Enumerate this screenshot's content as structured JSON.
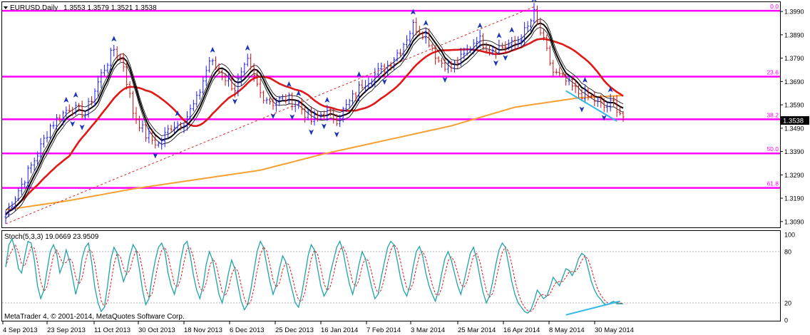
{
  "header": {
    "symbol": "EURUSD,Daily",
    "ohlc": "1.3553 1.3579 1.3521 1.3538",
    "collapse_icon": "triangle-down-icon"
  },
  "colors": {
    "price_line": "#1a1aff",
    "fib_line": "#ff00ff",
    "ma_fast": "#000000",
    "ma_mid": "#e01818",
    "ma_slow": "#f5a030",
    "fractal": "#1c34b8",
    "stoch_main": "#1fa3a8",
    "stoch_signal": "#e01818",
    "divergence": "#33b8e8",
    "trend_line": "#cc2a2a"
  },
  "price_axis": {
    "labels": [
      "1.3990",
      "1.3890",
      "1.3790",
      "1.3690",
      "1.3590",
      "1.3490",
      "1.3390",
      "1.3290",
      "1.3190",
      "1.3090"
    ],
    "current_price": "1.3538"
  },
  "fib_levels": [
    {
      "label": "0.0",
      "price": 1.3993
    },
    {
      "label": "23.6",
      "price": 1.3711
    },
    {
      "label": "38.2",
      "price": 1.3528
    },
    {
      "label": "50.0",
      "price": 1.3382
    },
    {
      "label": "61.8",
      "price": 1.3234
    }
  ],
  "oscillator": {
    "title": "Stoch(5,3,3) 19.0669 23.9509",
    "axis_labels": [
      "100",
      "80",
      "20",
      "0"
    ],
    "levels": [
      80,
      20
    ]
  },
  "footer": {
    "copyright": "MetaTrader 4, © 2001-2014, MetaQuotes Software Corp."
  },
  "time_axis": {
    "labels": [
      "4 Sep 2013",
      "23 Sep 2013",
      "11 Oct 2013",
      "30 Oct 2013",
      "18 Nov 2013",
      "6 Dec 2013",
      "25 Dec 2013",
      "16 Jan 2014",
      "7 Feb 2014",
      "3 Mar 2014",
      "25 Mar 2014",
      "16 Apr 2014",
      "8 May 2014",
      "30 May 2014"
    ]
  },
  "chart_data": {
    "type": "line",
    "instrument": "EURUSD",
    "timeframe": "Daily",
    "ylim": [
      1.3065,
      1.403
    ],
    "price_anchors": [
      [
        0,
        1.312
      ],
      [
        5,
        1.325
      ],
      [
        10,
        1.338
      ],
      [
        14,
        1.35
      ],
      [
        20,
        1.358
      ],
      [
        25,
        1.355
      ],
      [
        30,
        1.372
      ],
      [
        34,
        1.383
      ],
      [
        37,
        1.376
      ],
      [
        40,
        1.356
      ],
      [
        44,
        1.346
      ],
      [
        48,
        1.342
      ],
      [
        52,
        1.35
      ],
      [
        56,
        1.352
      ],
      [
        60,
        1.361
      ],
      [
        64,
        1.378
      ],
      [
        68,
        1.372
      ],
      [
        72,
        1.366
      ],
      [
        76,
        1.377
      ],
      [
        80,
        1.364
      ],
      [
        84,
        1.36
      ],
      [
        88,
        1.362
      ],
      [
        92,
        1.359
      ],
      [
        96,
        1.352
      ],
      [
        100,
        1.356
      ],
      [
        104,
        1.353
      ],
      [
        108,
        1.36
      ],
      [
        112,
        1.368
      ],
      [
        116,
        1.372
      ],
      [
        120,
        1.376
      ],
      [
        124,
        1.383
      ],
      [
        128,
        1.393
      ],
      [
        132,
        1.389
      ],
      [
        136,
        1.378
      ],
      [
        140,
        1.375
      ],
      [
        144,
        1.38
      ],
      [
        148,
        1.388
      ],
      [
        152,
        1.383
      ],
      [
        156,
        1.384
      ],
      [
        160,
        1.385
      ],
      [
        164,
        1.392
      ],
      [
        166,
        1.398
      ],
      [
        168,
        1.39
      ],
      [
        172,
        1.373
      ],
      [
        176,
        1.369
      ],
      [
        180,
        1.364
      ],
      [
        184,
        1.362
      ],
      [
        188,
        1.358
      ],
      [
        191,
        1.36
      ],
      [
        194,
        1.3538
      ]
    ],
    "ma_slow_anchors": [
      [
        0,
        1.314
      ],
      [
        20,
        1.318
      ],
      [
        40,
        1.323
      ],
      [
        60,
        1.327
      ],
      [
        80,
        1.331
      ],
      [
        100,
        1.338
      ],
      [
        120,
        1.344
      ],
      [
        140,
        1.35
      ],
      [
        160,
        1.358
      ],
      [
        180,
        1.362
      ],
      [
        194,
        1.363
      ]
    ],
    "stoch_main": [
      62,
      88,
      95,
      82,
      60,
      55,
      75,
      92,
      90,
      70,
      40,
      25,
      35,
      58,
      80,
      88,
      78,
      55,
      65,
      82,
      70,
      50,
      30,
      45,
      72,
      85,
      90,
      68,
      38,
      20,
      10,
      15,
      40,
      70,
      85,
      78,
      60,
      45,
      55,
      75,
      88,
      82,
      60,
      35,
      18,
      25,
      50,
      70,
      85,
      90,
      80,
      55,
      40,
      30,
      45,
      70,
      88,
      92,
      75,
      52,
      35,
      25,
      40,
      65,
      80,
      70,
      50,
      30,
      20,
      35,
      55,
      70,
      60,
      40,
      22,
      12,
      18,
      35,
      58,
      80,
      92,
      85,
      65,
      45,
      30,
      40,
      60,
      75,
      68,
      50,
      35,
      20,
      15,
      30,
      52,
      75,
      88,
      82,
      60,
      40,
      28,
      35,
      55,
      70,
      85,
      92,
      80,
      60,
      42,
      30,
      45,
      65,
      80,
      72,
      55,
      38,
      25,
      30,
      50,
      68,
      85,
      92,
      88,
      70,
      50,
      35,
      28,
      40,
      62,
      80,
      86,
      75,
      55,
      40,
      30,
      22,
      35,
      55,
      72,
      80,
      70,
      55,
      40,
      30,
      45,
      62,
      78,
      85,
      70,
      50,
      32,
      20,
      28,
      45,
      65,
      82,
      90,
      85,
      65,
      45,
      30,
      20,
      15,
      10,
      8,
      12,
      22,
      35,
      30,
      25,
      28,
      38,
      50,
      45,
      40,
      50,
      60,
      58,
      52,
      60,
      72,
      78,
      75,
      60,
      45,
      35,
      28,
      24,
      19,
      18,
      20,
      22,
      19,
      19,
      19
    ]
  }
}
